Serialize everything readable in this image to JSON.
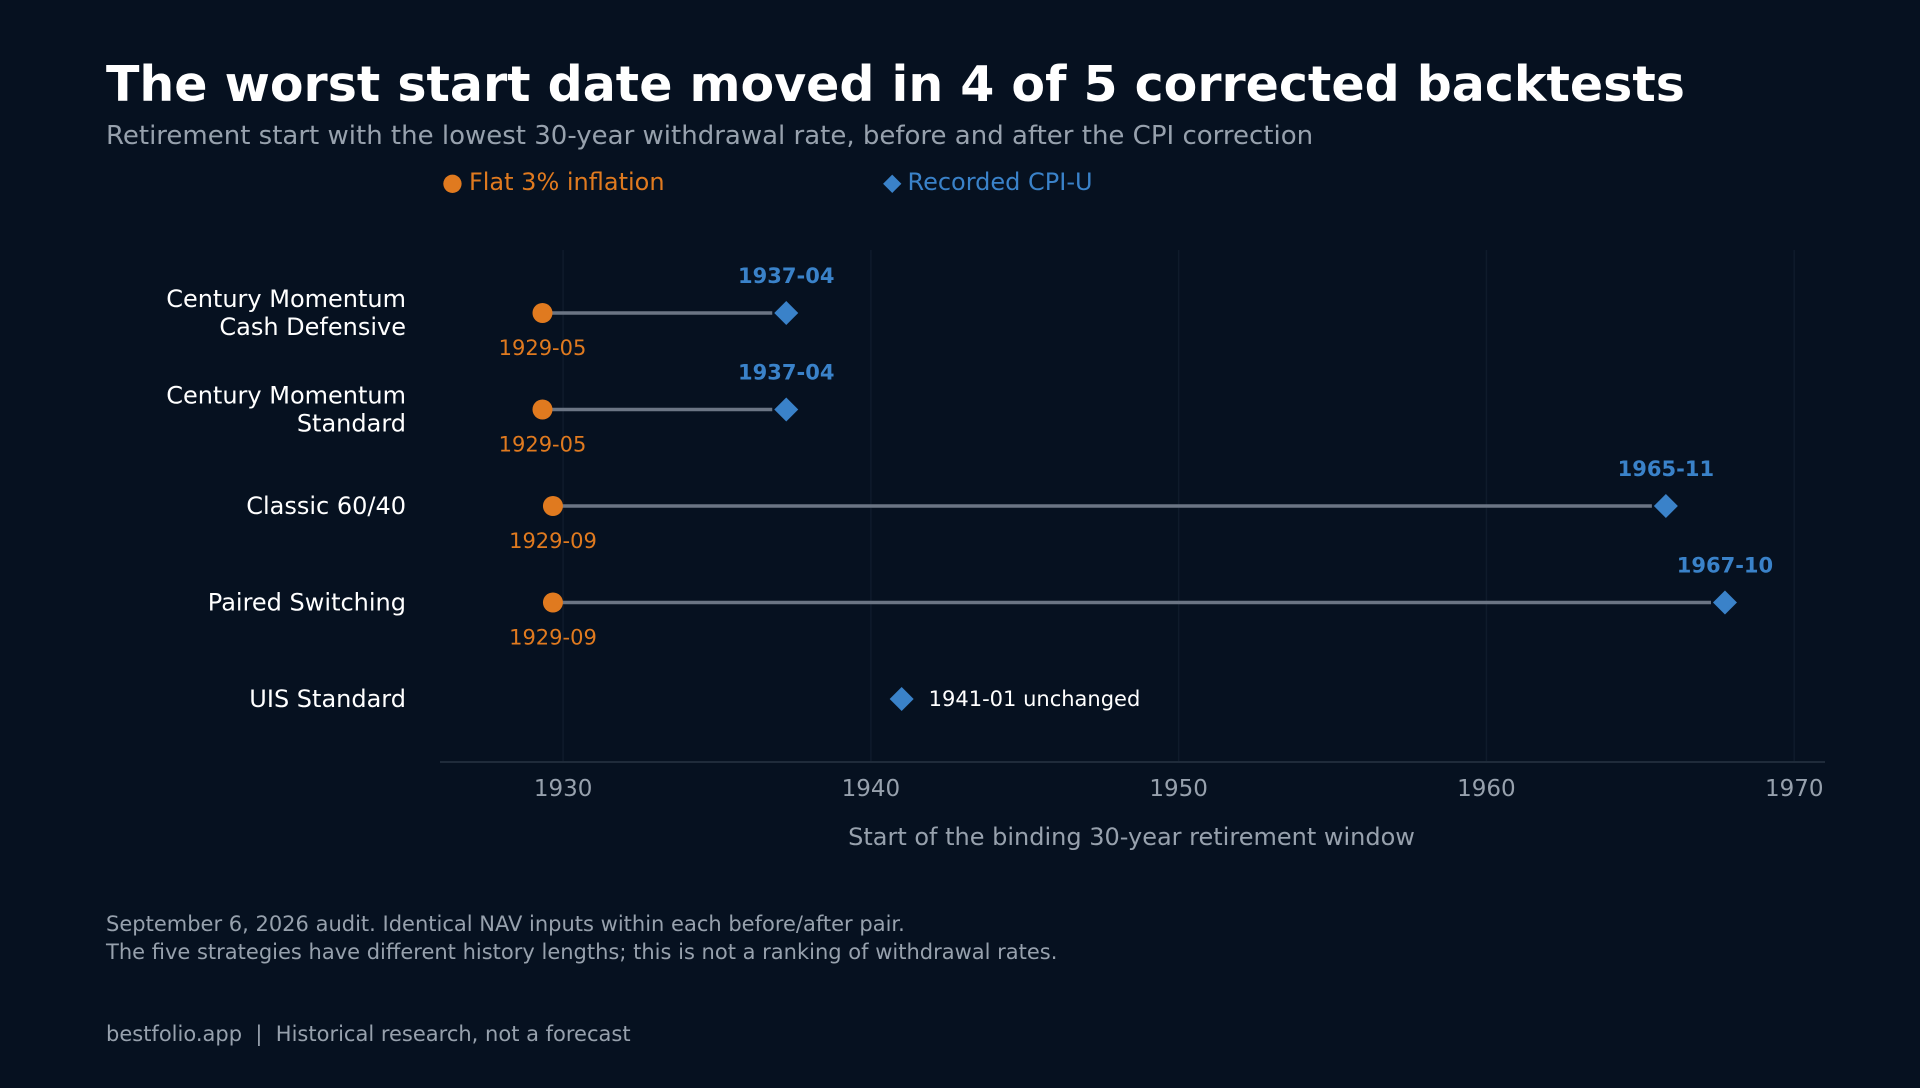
{
  "header": {
    "title": "The worst start date moved in 4 of 5 corrected backtests",
    "subtitle": "Retirement start with the lowest 30-year withdrawal rate, before and after the CPI correction"
  },
  "legend": {
    "flat": {
      "glyph": "●",
      "label": "Flat 3% inflation"
    },
    "cpi": {
      "glyph": "◆",
      "label": "Recorded CPI-U"
    }
  },
  "colors": {
    "background": "#061120",
    "flat": "#e07a1f",
    "cpi": "#3a82c9",
    "connector": "#6b7584",
    "grid": "#0f1b2b",
    "axis": "#1f2b3a"
  },
  "chart_data": {
    "type": "dumbbell",
    "xlabel": "Start of the binding 30-year retirement window",
    "xlim": [
      1926,
      1971
    ],
    "xticks": [
      1930,
      1940,
      1950,
      1960,
      1970
    ],
    "grid": "vertical",
    "series": [
      {
        "name": "Flat 3% inflation",
        "marker": "circle"
      },
      {
        "name": "Recorded CPI-U",
        "marker": "diamond"
      }
    ],
    "rows": [
      {
        "label": [
          "Century Momentum",
          "Cash Defensive"
        ],
        "before": 1929.33,
        "before_label": "1929-05",
        "after": 1937.25,
        "after_label": "1937-04"
      },
      {
        "label": [
          "Century Momentum",
          "Standard"
        ],
        "before": 1929.33,
        "before_label": "1929-05",
        "after": 1937.25,
        "after_label": "1937-04"
      },
      {
        "label": [
          "Classic 60/40"
        ],
        "before": 1929.67,
        "before_label": "1929-09",
        "after": 1965.83,
        "after_label": "1965-11"
      },
      {
        "label": [
          "Paired Switching"
        ],
        "before": 1929.67,
        "before_label": "1929-09",
        "after": 1967.75,
        "after_label": "1967-10"
      },
      {
        "label": [
          "UIS Standard"
        ],
        "before": null,
        "before_label": "",
        "after": 1941.0,
        "after_label": "1941-01",
        "note": "unchanged"
      }
    ]
  },
  "footnote": {
    "line1": "September 6, 2026 audit. Identical NAV inputs within each before/after pair.",
    "line2": "The five strategies have different history lengths; this is not a ranking of withdrawal rates."
  },
  "footer": {
    "text": "bestfolio.app  |  Historical research, not a forecast"
  }
}
